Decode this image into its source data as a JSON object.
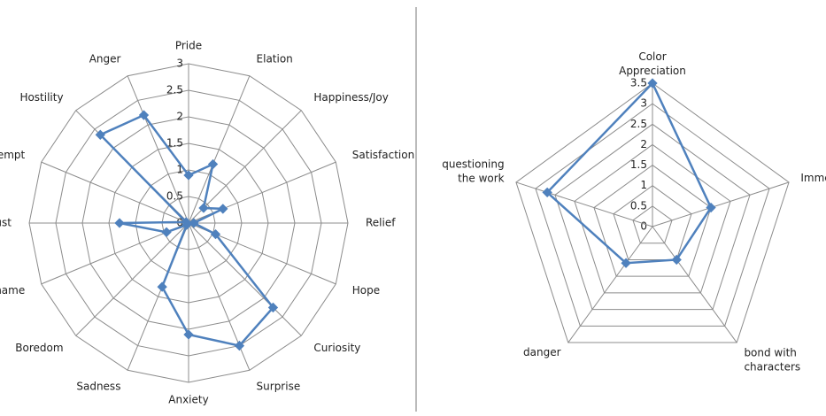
{
  "chart_data": [
    {
      "type": "radar",
      "categories": [
        "Pride",
        "Elation",
        "Happiness/Joy",
        "Satisfaction",
        "Relief",
        "Hope",
        "Curiosity",
        "Surprise",
        "Anxiety",
        "Sadness",
        "Boredom",
        "Shame",
        "Disgust",
        "Contempt",
        "Hostility",
        "Anger"
      ],
      "values": [
        0.9,
        1.2,
        0.4,
        0.7,
        0.1,
        0.55,
        2.25,
        2.5,
        2.1,
        1.3,
        0.05,
        0.45,
        1.3,
        0.05,
        2.35,
        2.2
      ],
      "color": "#4f81bd",
      "ylim": [
        0,
        3
      ],
      "yticks": [
        0,
        0.5,
        1,
        1.5,
        2,
        2.5,
        3
      ]
    },
    {
      "type": "radar",
      "categories": [
        "Color Appreciation",
        "Immersion",
        "bond with characters",
        "danger",
        "questioning the work"
      ],
      "values": [
        3.5,
        1.5,
        1,
        1.1,
        2.7
      ],
      "color": "#4f81bd",
      "ylim": [
        0,
        3.5
      ],
      "yticks": [
        0,
        0.5,
        1,
        1.5,
        2,
        2.5,
        3,
        3.5
      ]
    }
  ]
}
